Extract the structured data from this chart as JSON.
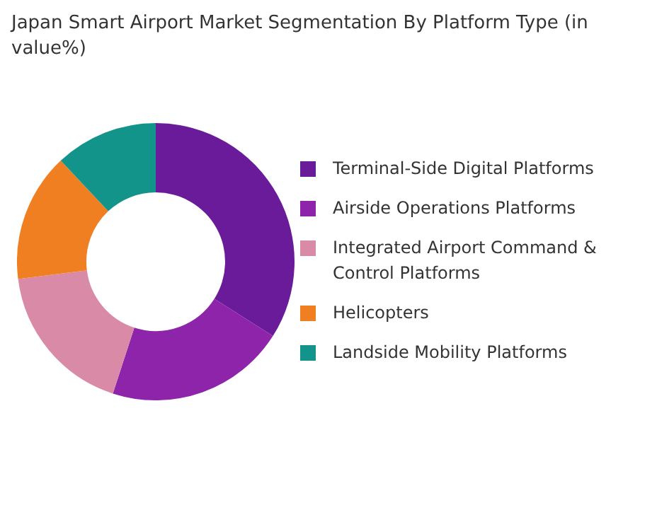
{
  "chart_data": {
    "type": "donut",
    "title": "Japan Smart Airport Market Segmentation By Platform Type (in value%)",
    "categories": [
      "Terminal-Side Digital Platforms",
      "Airside Operations Platforms",
      "Integrated Airport Command & Control Platforms",
      "Helicopters",
      "Landside Mobility Platforms"
    ],
    "values": [
      34,
      21,
      18,
      15,
      12
    ],
    "colors": [
      "#6a1b9a",
      "#8e24aa",
      "#d98aa6",
      "#f07f22",
      "#12948a"
    ],
    "legend": "right"
  }
}
